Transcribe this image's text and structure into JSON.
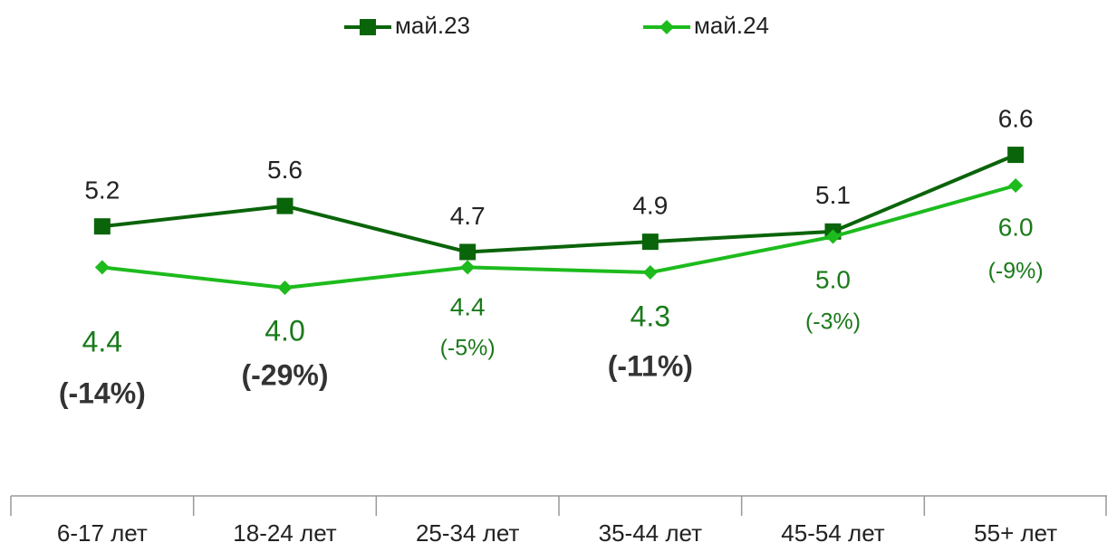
{
  "chart_data": {
    "type": "line",
    "categories": [
      "6-17 лет",
      "18-24 лет",
      "25-34 лет",
      "35-44 лет",
      "45-54 лет",
      "55+ лет"
    ],
    "series": [
      {
        "name": "май.23",
        "color": "#0a640a",
        "marker": "square",
        "values": [
          5.2,
          5.6,
          4.7,
          4.9,
          5.1,
          6.6
        ],
        "value_labels": [
          "5.2",
          "5.6",
          "4.7",
          "4.9",
          "5.1",
          "6.6"
        ]
      },
      {
        "name": "май.24",
        "color": "#1dbb1d",
        "marker": "diamond",
        "values": [
          4.4,
          4.0,
          4.4,
          4.3,
          5.0,
          6.0
        ],
        "value_labels": [
          "4.4",
          "4.0",
          "4.4",
          "4.3",
          "5.0",
          "6.0"
        ]
      }
    ],
    "annotations": [
      {
        "text": "(-14%)",
        "bold": true
      },
      {
        "text": "(-29%)",
        "bold": true
      },
      {
        "text": "(-5%)",
        "bold": false
      },
      {
        "text": "(-11%)",
        "bold": true
      },
      {
        "text": "(-3%)",
        "bold": false
      },
      {
        "text": "(-9%)",
        "bold": false
      }
    ],
    "legend": "top"
  }
}
